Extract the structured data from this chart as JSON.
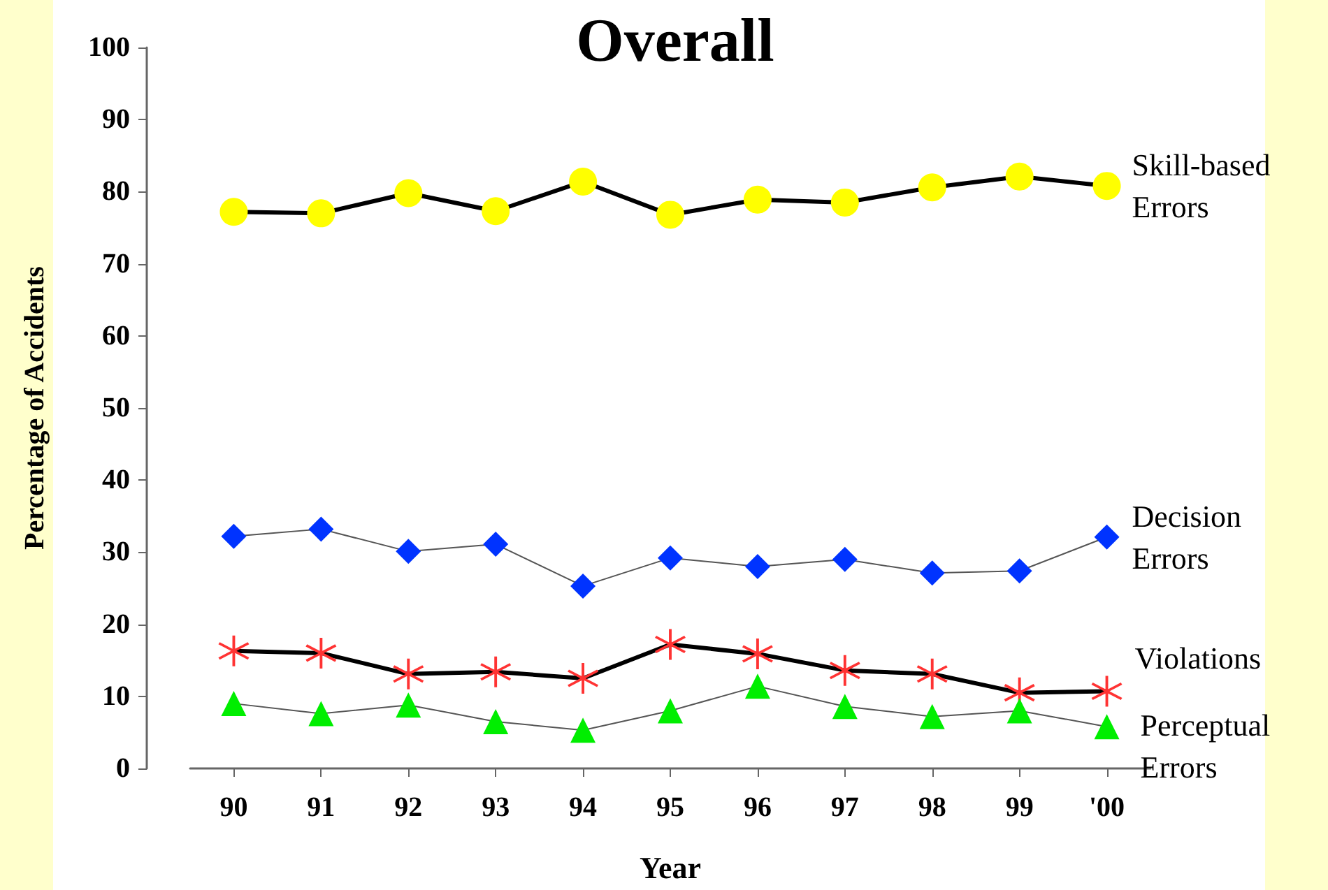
{
  "chart_data": {
    "type": "line",
    "title": "Overall",
    "xlabel": "Year",
    "ylabel": "Percentage of Accidents",
    "categories": [
      "90",
      "91",
      "92",
      "93",
      "94",
      "95",
      "96",
      "97",
      "98",
      "99",
      "'00"
    ],
    "ylim": [
      0,
      100
    ],
    "yticks": [
      0,
      10,
      20,
      30,
      40,
      50,
      60,
      70,
      80,
      90,
      100
    ],
    "grid": false,
    "legend": false,
    "series": [
      {
        "name": "Skill-based Errors",
        "color": "#ffff00",
        "marker": "circle",
        "values": [
          77.2,
          77.0,
          79.8,
          77.3,
          81.4,
          76.8,
          78.9,
          78.5,
          80.6,
          82.1,
          80.8
        ]
      },
      {
        "name": "Decision Errors",
        "color": "#0033ff",
        "marker": "diamond",
        "values": [
          32.2,
          33.2,
          30.1,
          31.1,
          25.3,
          29.2,
          28.0,
          29.0,
          27.1,
          27.4,
          32.1
        ]
      },
      {
        "name": "Violations",
        "color": "#ff3333",
        "marker": "cross",
        "values": [
          16.3,
          16.0,
          13.1,
          13.4,
          12.5,
          17.2,
          15.9,
          13.6,
          13.1,
          10.5,
          10.7
        ]
      },
      {
        "name": "Perceptual Errors",
        "color": "#00ee00",
        "marker": "triangle",
        "values": [
          9.0,
          7.6,
          8.8,
          6.5,
          5.3,
          8.0,
          11.4,
          8.6,
          7.2,
          8.0,
          5.8
        ]
      }
    ]
  }
}
